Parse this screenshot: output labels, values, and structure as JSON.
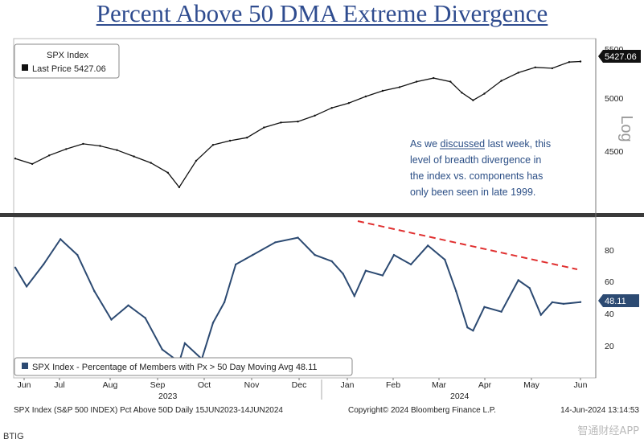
{
  "title": "Percent Above 50 DMA Extreme Divergence",
  "colors": {
    "title": "#2f4c8f",
    "price": "#111111",
    "breadth": "#2c4a72",
    "trend": "#e03030",
    "badge_price": "#111111",
    "badge_breadth": "#2c4a72",
    "annotation": "#2c4f86"
  },
  "chart_data": [
    {
      "type": "line",
      "title": "SPX Index",
      "legend_lines": [
        "SPX Index",
        "Last Price 5427.06"
      ],
      "scale": "Log",
      "y_ticks": [
        "5500",
        "5000",
        "4500"
      ],
      "ylim": [
        4000,
        5600
      ],
      "last_value_label": "5427.06",
      "x": [
        0,
        0.03,
        0.06,
        0.09,
        0.12,
        0.15,
        0.18,
        0.21,
        0.24,
        0.27,
        0.29,
        0.32,
        0.35,
        0.38,
        0.41,
        0.44,
        0.47,
        0.5,
        0.53,
        0.56,
        0.59,
        0.62,
        0.65,
        0.68,
        0.71,
        0.74,
        0.77,
        0.79,
        0.81,
        0.83,
        0.86,
        0.89,
        0.92,
        0.95,
        0.98,
        1.0
      ],
      "values": [
        4420,
        4370,
        4450,
        4510,
        4560,
        4540,
        4500,
        4440,
        4380,
        4290,
        4160,
        4400,
        4550,
        4590,
        4620,
        4720,
        4770,
        4780,
        4840,
        4920,
        4970,
        5040,
        5100,
        5140,
        5200,
        5240,
        5200,
        5080,
        5000,
        5070,
        5210,
        5300,
        5360,
        5350,
        5420,
        5427
      ]
    },
    {
      "type": "line",
      "title": "SPX Index - Percentage of Members with Px > 50 Day Moving Avg",
      "legend_text": "SPX Index - Percentage of Members with Px > 50 Day Moving Avg 48.11",
      "y_ticks": [
        "80",
        "60",
        "40",
        "20"
      ],
      "ylim": [
        0,
        100
      ],
      "last_value_label": "48.11",
      "x": [
        0,
        0.02,
        0.05,
        0.08,
        0.11,
        0.14,
        0.17,
        0.2,
        0.23,
        0.26,
        0.29,
        0.3,
        0.33,
        0.35,
        0.37,
        0.39,
        0.42,
        0.46,
        0.5,
        0.53,
        0.56,
        0.58,
        0.6,
        0.62,
        0.65,
        0.67,
        0.7,
        0.73,
        0.76,
        0.78,
        0.8,
        0.81,
        0.83,
        0.86,
        0.89,
        0.91,
        0.93,
        0.95,
        0.97,
        1.0
      ],
      "values": [
        70,
        58,
        72,
        88,
        78,
        55,
        37,
        46,
        38,
        18,
        10,
        22,
        12,
        35,
        48,
        72,
        78,
        86,
        89,
        78,
        74,
        66,
        52,
        68,
        65,
        78,
        72,
        84,
        75,
        55,
        32,
        30,
        45,
        42,
        62,
        57,
        40,
        48,
        47,
        48.11
      ]
    }
  ],
  "trend_line_label": "",
  "annotation_lines": [
    "As we discussed last week, this",
    "level of breadth divergence in",
    "the index vs. components has",
    "only been seen in late 1999."
  ],
  "annotation_underlined_word": "discussed",
  "months": [
    "Jun",
    "Jul",
    "Aug",
    "Sep",
    "Oct",
    "Nov",
    "Dec",
    "Jan",
    "Feb",
    "Mar",
    "Apr",
    "May",
    "Jun"
  ],
  "years": [
    "2023",
    "2024"
  ],
  "footer": {
    "left": "SPX Index (S&P 500 INDEX) Pct Above 50D  Daily 15JUN2023-14JUN2024",
    "center": "Copyright© 2024 Bloomberg Finance L.P.",
    "right": "14-Jun-2024 13:14:53"
  },
  "source": "BTIG",
  "watermark": "智通财经APP"
}
